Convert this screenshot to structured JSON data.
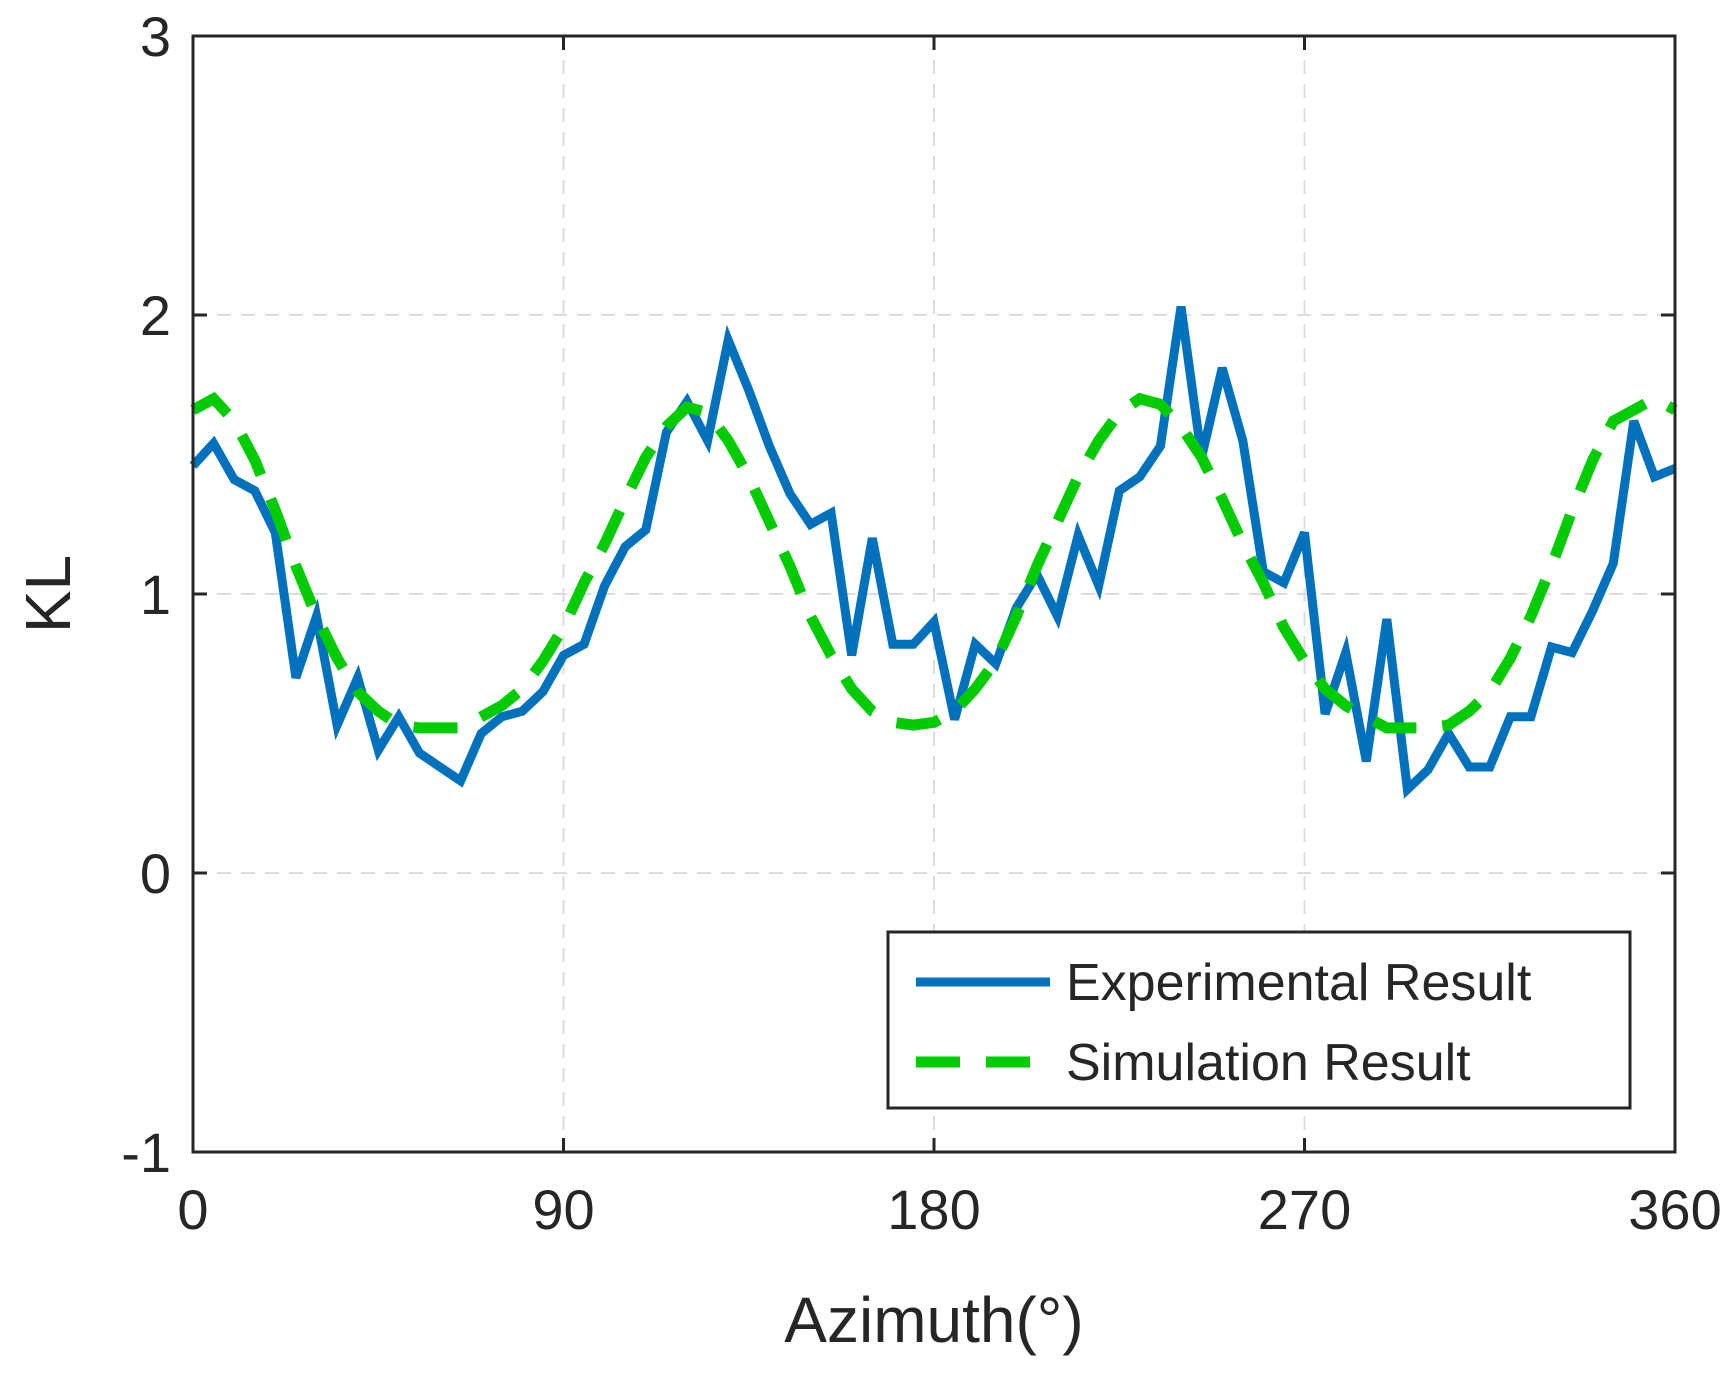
{
  "chart_data": {
    "type": "line",
    "title": "",
    "xlabel": "Azimuth(°)",
    "ylabel": "KL",
    "xlim": [
      0,
      360
    ],
    "ylim": [
      -1,
      3
    ],
    "xticks": [
      0,
      90,
      180,
      270,
      360
    ],
    "yticks": [
      -1,
      0,
      1,
      2,
      3
    ],
    "xtick_labels": [
      "0",
      "90",
      "180",
      "270",
      "360"
    ],
    "ytick_labels": [
      "-1",
      "0",
      "1",
      "2",
      "3"
    ],
    "grid": true,
    "legend_position": "bottom-right",
    "series": [
      {
        "name": "Experimental Result",
        "style": "solid",
        "color": "#0072BD",
        "x": [
          0,
          5,
          10,
          15,
          20,
          25,
          30,
          35,
          40,
          45,
          50,
          55,
          60,
          65,
          70,
          75,
          80,
          85,
          90,
          95,
          100,
          105,
          110,
          115,
          120,
          125,
          130,
          135,
          140,
          145,
          150,
          155,
          160,
          165,
          170,
          175,
          180,
          185,
          190,
          195,
          200,
          205,
          210,
          215,
          220,
          225,
          230,
          235,
          240,
          245,
          250,
          255,
          260,
          265,
          270,
          275,
          280,
          285,
          290,
          295,
          300,
          305,
          310,
          315,
          320,
          325,
          330,
          335,
          340,
          345,
          350,
          355,
          360
        ],
        "y": [
          1.46,
          1.54,
          1.41,
          1.37,
          1.22,
          0.7,
          0.92,
          0.53,
          0.7,
          0.44,
          0.56,
          0.43,
          0.38,
          0.33,
          0.5,
          0.56,
          0.58,
          0.65,
          0.78,
          0.82,
          1.03,
          1.17,
          1.23,
          1.58,
          1.69,
          1.55,
          1.91,
          1.73,
          1.53,
          1.36,
          1.25,
          1.29,
          0.78,
          1.2,
          0.82,
          0.82,
          0.9,
          0.55,
          0.82,
          0.75,
          0.95,
          1.07,
          0.92,
          1.21,
          1.03,
          1.37,
          1.42,
          1.53,
          2.03,
          1.49,
          1.81,
          1.55,
          1.08,
          1.04,
          1.22,
          0.57,
          0.79,
          0.4,
          0.91,
          0.3,
          0.37,
          0.5,
          0.38,
          0.38,
          0.56,
          0.56,
          0.81,
          0.79,
          0.94,
          1.11,
          1.62,
          1.42,
          1.45
        ]
      },
      {
        "name": "Simulation Result",
        "style": "dashed",
        "color": "#00CC00",
        "x": [
          0,
          5,
          10,
          15,
          20,
          25,
          30,
          35,
          40,
          45,
          50,
          55,
          60,
          65,
          70,
          75,
          80,
          85,
          90,
          95,
          100,
          105,
          110,
          115,
          120,
          125,
          130,
          135,
          140,
          145,
          150,
          155,
          160,
          165,
          170,
          175,
          180,
          185,
          190,
          195,
          200,
          205,
          210,
          215,
          220,
          225,
          230,
          235,
          240,
          245,
          250,
          255,
          260,
          265,
          270,
          275,
          280,
          285,
          290,
          295,
          300,
          305,
          310,
          315,
          320,
          325,
          330,
          335,
          340,
          345,
          350,
          355,
          360
        ],
        "y": [
          1.66,
          1.7,
          1.62,
          1.48,
          1.3,
          1.1,
          0.92,
          0.77,
          0.65,
          0.58,
          0.53,
          0.52,
          0.52,
          0.52,
          0.56,
          0.6,
          0.66,
          0.76,
          0.88,
          1.04,
          1.18,
          1.34,
          1.49,
          1.6,
          1.67,
          1.65,
          1.55,
          1.42,
          1.26,
          1.1,
          0.92,
          0.78,
          0.66,
          0.58,
          0.54,
          0.53,
          0.54,
          0.58,
          0.66,
          0.76,
          0.92,
          1.1,
          1.26,
          1.42,
          1.55,
          1.65,
          1.7,
          1.68,
          1.6,
          1.49,
          1.34,
          1.18,
          1.04,
          0.88,
          0.76,
          0.66,
          0.6,
          0.56,
          0.52,
          0.52,
          0.52,
          0.53,
          0.58,
          0.65,
          0.77,
          0.92,
          1.1,
          1.3,
          1.48,
          1.62,
          1.66,
          1.7,
          1.66
        ]
      }
    ]
  }
}
